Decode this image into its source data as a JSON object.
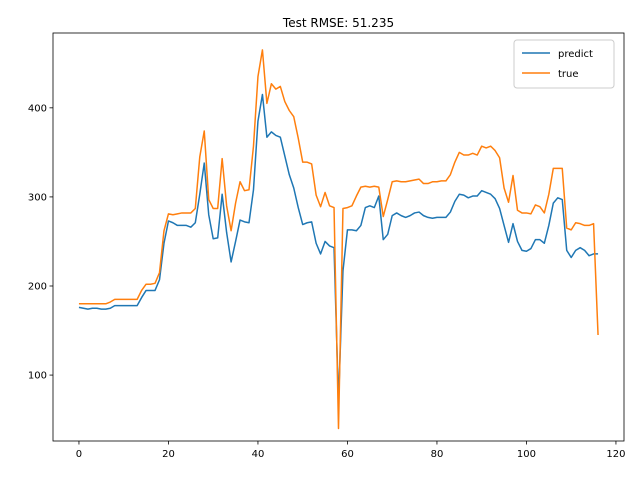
{
  "chart_data": {
    "type": "line",
    "title": "Test RMSE: 51.235",
    "xlabel": "",
    "ylabel": "",
    "xlim": [
      -5.8,
      121.8
    ],
    "ylim": [
      26,
      484
    ],
    "xticks": [
      0,
      20,
      40,
      60,
      80,
      100,
      120
    ],
    "yticks": [
      100,
      200,
      300,
      400
    ],
    "grid": false,
    "legend": "top-right",
    "series": [
      {
        "name": "predict",
        "color": "#1f77b4",
        "values": [
          176,
          175,
          174,
          175,
          175,
          174,
          174,
          175,
          178,
          178,
          178,
          178,
          178,
          178,
          187,
          195,
          195,
          195,
          207,
          248,
          273,
          271,
          268,
          268,
          268,
          266,
          271,
          303,
          338,
          280,
          253,
          254,
          303,
          260,
          227,
          250,
          274,
          272,
          271,
          308,
          385,
          415,
          367,
          373,
          369,
          367,
          346,
          325,
          310,
          288,
          269,
          271,
          272,
          248,
          236,
          250,
          245,
          243,
          70,
          217,
          263,
          263,
          262,
          268,
          288,
          290,
          288,
          301,
          252,
          258,
          279,
          282,
          279,
          277,
          279,
          282,
          283,
          279,
          277,
          276,
          277,
          277,
          277,
          283,
          295,
          303,
          302,
          299,
          301,
          301,
          307,
          305,
          303,
          298,
          287,
          268,
          249,
          270,
          250,
          240,
          239,
          242,
          252,
          252,
          248,
          268,
          293,
          299,
          297,
          240,
          232,
          240,
          243,
          240,
          234,
          236,
          236
        ]
      },
      {
        "name": "true",
        "color": "#ff7f0e",
        "values": [
          180,
          180,
          180,
          180,
          180,
          180,
          180,
          182,
          185,
          185,
          185,
          185,
          185,
          185,
          195,
          202,
          202,
          203,
          215,
          262,
          281,
          280,
          281,
          282,
          282,
          282,
          287,
          345,
          374,
          297,
          287,
          287,
          343,
          290,
          262,
          293,
          317,
          307,
          308,
          357,
          435,
          465,
          405,
          427,
          421,
          424,
          407,
          397,
          390,
          366,
          339,
          339,
          337,
          302,
          289,
          305,
          290,
          288,
          40,
          287,
          288,
          290,
          301,
          311,
          312,
          311,
          312,
          311,
          278,
          297,
          317,
          318,
          317,
          317,
          318,
          319,
          320,
          315,
          315,
          317,
          317,
          318,
          318,
          325,
          339,
          350,
          347,
          347,
          349,
          347,
          357,
          355,
          357,
          352,
          344,
          310,
          294,
          324,
          285,
          282,
          282,
          281,
          291,
          289,
          282,
          303,
          332,
          332,
          332,
          265,
          263,
          271,
          270,
          268,
          268,
          270,
          145
        ]
      }
    ]
  }
}
